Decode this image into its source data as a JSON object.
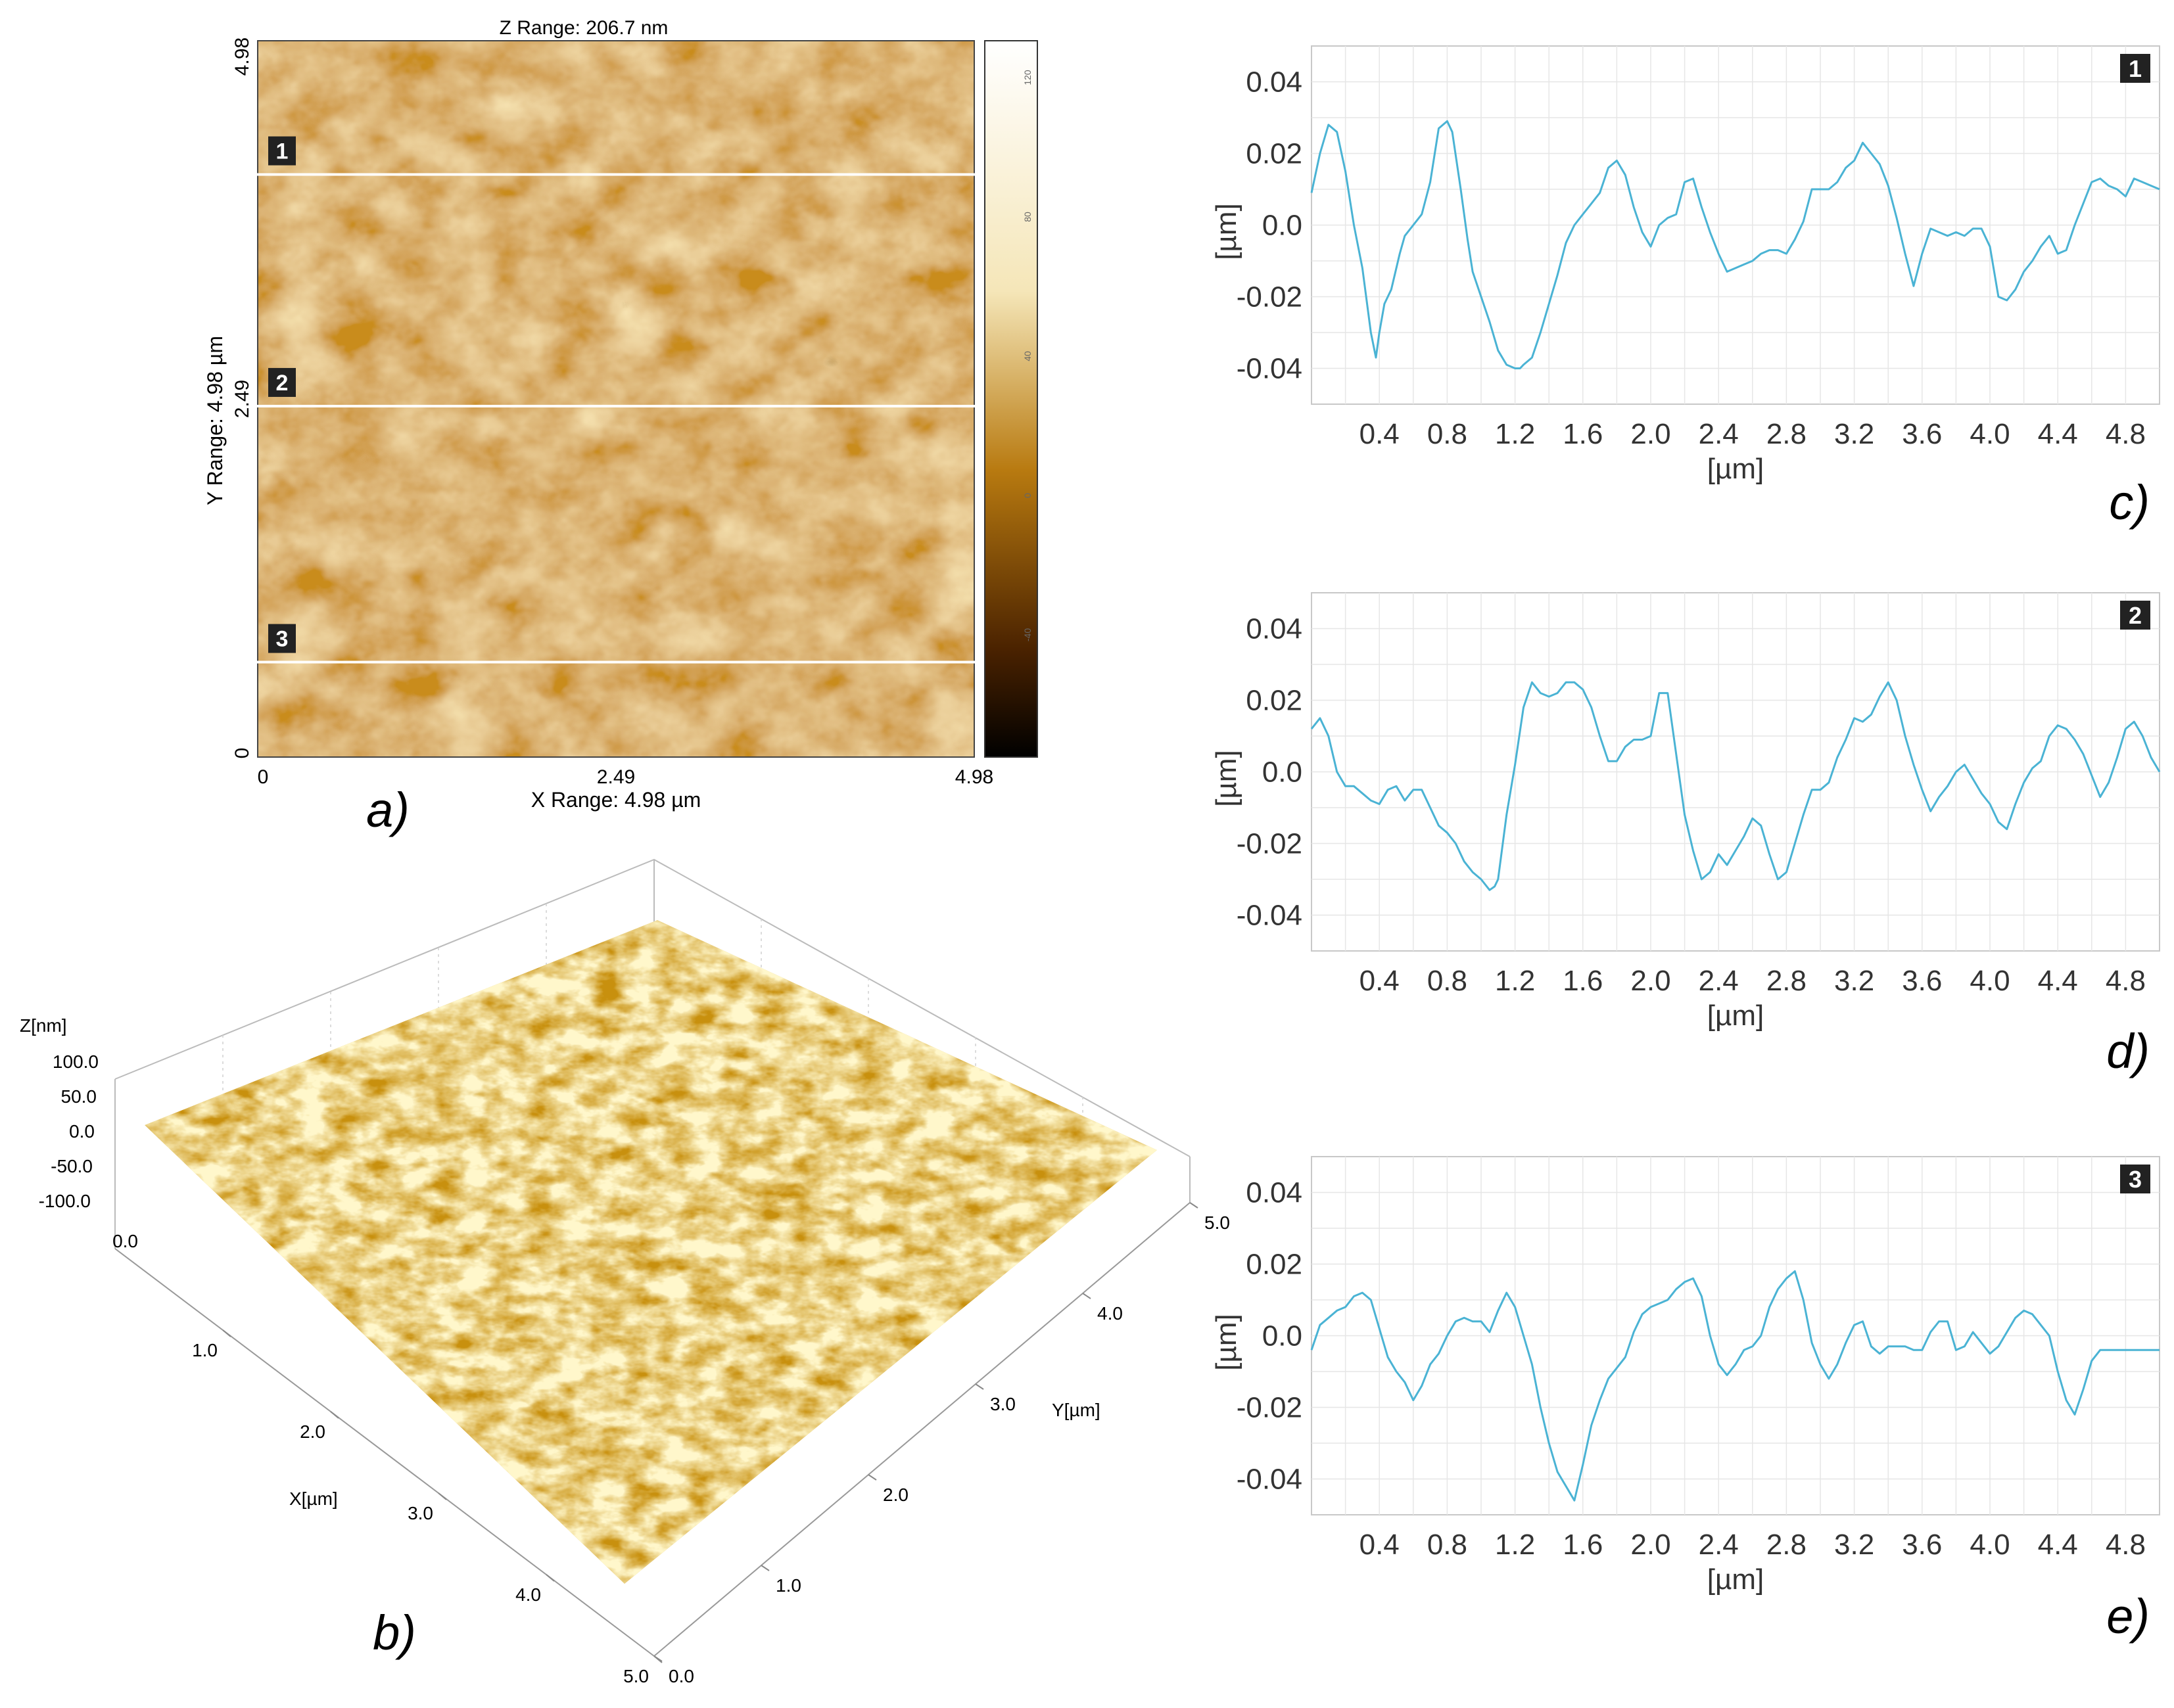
{
  "panel_labels": {
    "a": "a)",
    "b": "b)",
    "c": "c)",
    "d": "d)",
    "e": "e)"
  },
  "afm_map": {
    "z_range": "Z Range:  206.7 nm",
    "x_range": "X Range:  4.98 µm",
    "y_range": "Y Range:  4.98 µm",
    "x_ticks": [
      "0",
      "2.49",
      "4.98"
    ],
    "y_ticks": [
      "0",
      "2.49",
      "4.98"
    ],
    "colorbar_ticks": [
      "120",
      "80",
      "40",
      "0",
      "-40"
    ],
    "scan_lines": [
      "1",
      "2",
      "3"
    ],
    "scan_line_positions_um": [
      4.05,
      2.44,
      0.66
    ],
    "colors": {
      "dark": "#1a0a00",
      "mid": "#b87a10",
      "light": "#f5e6b8"
    }
  },
  "surface_3d": {
    "z_label": "Z[nm]",
    "z_ticks": [
      "100.0",
      "50.0",
      "0.0",
      "-50.0",
      "-100.0"
    ],
    "x_label": "X[µm]",
    "x_ticks": [
      "0.0",
      "1.0",
      "2.0",
      "3.0",
      "4.0",
      "5.0"
    ],
    "y_label": "Y[µm]",
    "y_ticks": [
      "0.0",
      "1.0",
      "2.0",
      "3.0",
      "4.0",
      "5.0"
    ]
  },
  "chart_data": [
    {
      "type": "line",
      "id": "c",
      "badge": "1",
      "xlabel": "[µm]",
      "ylabel": "[µm]",
      "xlim": [
        0,
        5.0
      ],
      "ylim": [
        -0.05,
        0.05
      ],
      "x_ticks": [
        "0.4",
        "0.8",
        "1.2",
        "1.6",
        "2.0",
        "2.4",
        "2.8",
        "3.2",
        "3.6",
        "4.0",
        "4.4",
        "4.8"
      ],
      "y_ticks": [
        "0.04",
        "0.02",
        "0.0",
        "-0.02",
        "-0.04"
      ],
      "color": "#4ab3d4",
      "x": [
        0.0,
        0.05,
        0.1,
        0.15,
        0.2,
        0.25,
        0.3,
        0.35,
        0.38,
        0.4,
        0.43,
        0.47,
        0.52,
        0.55,
        0.6,
        0.65,
        0.7,
        0.75,
        0.8,
        0.83,
        0.88,
        0.92,
        0.95,
        1.0,
        1.05,
        1.1,
        1.15,
        1.2,
        1.23,
        1.25,
        1.3,
        1.35,
        1.4,
        1.45,
        1.5,
        1.55,
        1.6,
        1.65,
        1.7,
        1.75,
        1.8,
        1.85,
        1.9,
        1.95,
        2.0,
        2.05,
        2.1,
        2.15,
        2.2,
        2.25,
        2.3,
        2.35,
        2.4,
        2.45,
        2.5,
        2.55,
        2.6,
        2.65,
        2.7,
        2.75,
        2.8,
        2.85,
        2.9,
        2.95,
        3.0,
        3.05,
        3.1,
        3.15,
        3.2,
        3.25,
        3.3,
        3.35,
        3.4,
        3.45,
        3.5,
        3.55,
        3.6,
        3.65,
        3.7,
        3.75,
        3.8,
        3.85,
        3.9,
        3.95,
        4.0,
        4.05,
        4.1,
        4.15,
        4.2,
        4.25,
        4.3,
        4.35,
        4.4,
        4.45,
        4.5,
        4.55,
        4.6,
        4.65,
        4.7,
        4.75,
        4.8,
        4.85,
        4.9,
        4.95,
        5.0
      ],
      "y": [
        0.009,
        0.02,
        0.028,
        0.026,
        0.015,
        0.0,
        -0.012,
        -0.03,
        -0.037,
        -0.03,
        -0.022,
        -0.018,
        -0.008,
        -0.003,
        0.0,
        0.003,
        0.012,
        0.027,
        0.029,
        0.026,
        0.01,
        -0.004,
        -0.013,
        -0.02,
        -0.027,
        -0.035,
        -0.039,
        -0.04,
        -0.04,
        -0.039,
        -0.037,
        -0.03,
        -0.022,
        -0.014,
        -0.005,
        0.0,
        0.003,
        0.006,
        0.009,
        0.016,
        0.018,
        0.014,
        0.005,
        -0.002,
        -0.006,
        0.0,
        0.002,
        0.003,
        0.012,
        0.013,
        0.005,
        -0.002,
        -0.008,
        -0.013,
        -0.012,
        -0.011,
        -0.01,
        -0.008,
        -0.007,
        -0.007,
        -0.008,
        -0.004,
        0.001,
        0.01,
        0.01,
        0.01,
        0.012,
        0.016,
        0.018,
        0.023,
        0.02,
        0.017,
        0.011,
        0.002,
        -0.008,
        -0.017,
        -0.008,
        -0.001,
        -0.002,
        -0.003,
        -0.002,
        -0.003,
        -0.001,
        -0.001,
        -0.006,
        -0.02,
        -0.021,
        -0.018,
        -0.013,
        -0.01,
        -0.006,
        -0.003,
        -0.008,
        -0.007,
        0.0,
        0.006,
        0.012,
        0.013,
        0.011,
        0.01,
        0.008,
        0.013,
        0.012,
        0.011,
        0.01
      ]
    },
    {
      "type": "line",
      "id": "d",
      "badge": "2",
      "xlabel": "[µm]",
      "ylabel": "[µm]",
      "xlim": [
        0,
        5.0
      ],
      "ylim": [
        -0.05,
        0.05
      ],
      "x_ticks": [
        "0.4",
        "0.8",
        "1.2",
        "1.6",
        "2.0",
        "2.4",
        "2.8",
        "3.2",
        "3.6",
        "4.0",
        "4.4",
        "4.8"
      ],
      "y_ticks": [
        "0.04",
        "0.02",
        "0.0",
        "-0.02",
        "-0.04"
      ],
      "color": "#4ab3d4",
      "x": [
        0.0,
        0.05,
        0.1,
        0.15,
        0.2,
        0.25,
        0.3,
        0.35,
        0.4,
        0.45,
        0.5,
        0.55,
        0.6,
        0.65,
        0.7,
        0.75,
        0.8,
        0.85,
        0.9,
        0.95,
        1.0,
        1.05,
        1.08,
        1.1,
        1.15,
        1.2,
        1.25,
        1.3,
        1.35,
        1.4,
        1.45,
        1.5,
        1.55,
        1.6,
        1.65,
        1.7,
        1.75,
        1.8,
        1.85,
        1.9,
        1.95,
        2.0,
        2.05,
        2.1,
        2.15,
        2.2,
        2.25,
        2.3,
        2.35,
        2.4,
        2.45,
        2.5,
        2.55,
        2.6,
        2.65,
        2.7,
        2.75,
        2.8,
        2.85,
        2.9,
        2.95,
        3.0,
        3.05,
        3.1,
        3.15,
        3.2,
        3.25,
        3.3,
        3.35,
        3.4,
        3.45,
        3.5,
        3.55,
        3.6,
        3.65,
        3.7,
        3.75,
        3.8,
        3.85,
        3.9,
        3.95,
        4.0,
        4.05,
        4.1,
        4.15,
        4.2,
        4.25,
        4.3,
        4.35,
        4.4,
        4.45,
        4.5,
        4.55,
        4.6,
        4.65,
        4.7,
        4.75,
        4.8,
        4.85,
        4.9,
        4.95,
        5.0
      ],
      "y": [
        0.012,
        0.015,
        0.01,
        0.0,
        -0.004,
        -0.004,
        -0.006,
        -0.008,
        -0.009,
        -0.005,
        -0.004,
        -0.008,
        -0.005,
        -0.005,
        -0.01,
        -0.015,
        -0.017,
        -0.02,
        -0.025,
        -0.028,
        -0.03,
        -0.033,
        -0.032,
        -0.03,
        -0.012,
        0.002,
        0.018,
        0.025,
        0.022,
        0.021,
        0.022,
        0.025,
        0.025,
        0.023,
        0.018,
        0.01,
        0.003,
        0.003,
        0.007,
        0.009,
        0.009,
        0.01,
        0.022,
        0.022,
        0.005,
        -0.012,
        -0.022,
        -0.03,
        -0.028,
        -0.023,
        -0.026,
        -0.022,
        -0.018,
        -0.013,
        -0.015,
        -0.023,
        -0.03,
        -0.028,
        -0.02,
        -0.012,
        -0.005,
        -0.005,
        -0.003,
        0.004,
        0.009,
        0.015,
        0.014,
        0.016,
        0.021,
        0.025,
        0.02,
        0.01,
        0.002,
        -0.005,
        -0.011,
        -0.007,
        -0.004,
        0.0,
        0.002,
        -0.002,
        -0.006,
        -0.009,
        -0.014,
        -0.016,
        -0.009,
        -0.003,
        0.001,
        0.003,
        0.01,
        0.013,
        0.012,
        0.009,
        0.005,
        -0.001,
        -0.007,
        -0.003,
        0.004,
        0.012,
        0.014,
        0.01,
        0.004,
        0.0
      ]
    },
    {
      "type": "line",
      "id": "e",
      "badge": "3",
      "xlabel": "[µm]",
      "ylabel": "[µm]",
      "xlim": [
        0,
        5.0
      ],
      "ylim": [
        -0.05,
        0.05
      ],
      "x_ticks": [
        "0.4",
        "0.8",
        "1.2",
        "1.6",
        "2.0",
        "2.4",
        "2.8",
        "3.2",
        "3.6",
        "4.0",
        "4.4",
        "4.8"
      ],
      "y_ticks": [
        "0.04",
        "0.02",
        "0.0",
        "-0.02",
        "-0.04"
      ],
      "color": "#4ab3d4",
      "x": [
        0.0,
        0.05,
        0.1,
        0.15,
        0.2,
        0.25,
        0.3,
        0.35,
        0.4,
        0.45,
        0.5,
        0.55,
        0.6,
        0.65,
        0.7,
        0.75,
        0.8,
        0.85,
        0.9,
        0.95,
        1.0,
        1.05,
        1.1,
        1.15,
        1.2,
        1.25,
        1.3,
        1.35,
        1.4,
        1.45,
        1.5,
        1.55,
        1.6,
        1.65,
        1.7,
        1.75,
        1.8,
        1.85,
        1.9,
        1.95,
        2.0,
        2.05,
        2.1,
        2.15,
        2.2,
        2.25,
        2.3,
        2.35,
        2.4,
        2.45,
        2.5,
        2.55,
        2.6,
        2.65,
        2.7,
        2.75,
        2.8,
        2.85,
        2.9,
        2.95,
        3.0,
        3.05,
        3.1,
        3.15,
        3.2,
        3.25,
        3.3,
        3.35,
        3.4,
        3.45,
        3.5,
        3.55,
        3.6,
        3.65,
        3.7,
        3.75,
        3.8,
        3.85,
        3.9,
        3.95,
        4.0,
        4.05,
        4.1,
        4.15,
        4.2,
        4.25,
        4.3,
        4.35,
        4.4,
        4.45,
        4.5,
        4.55,
        4.6,
        4.65,
        4.7,
        4.75,
        4.8,
        4.85,
        4.9,
        4.95,
        5.0
      ],
      "y": [
        -0.004,
        0.003,
        0.005,
        0.007,
        0.008,
        0.011,
        0.012,
        0.01,
        0.002,
        -0.006,
        -0.01,
        -0.013,
        -0.018,
        -0.014,
        -0.008,
        -0.005,
        0.0,
        0.004,
        0.005,
        0.004,
        0.004,
        0.001,
        0.007,
        0.012,
        0.008,
        0.0,
        -0.008,
        -0.02,
        -0.03,
        -0.038,
        -0.042,
        -0.046,
        -0.036,
        -0.025,
        -0.018,
        -0.012,
        -0.009,
        -0.006,
        0.001,
        0.006,
        0.008,
        0.009,
        0.01,
        0.013,
        0.015,
        0.016,
        0.011,
        0.0,
        -0.008,
        -0.011,
        -0.008,
        -0.004,
        -0.003,
        0.0,
        0.008,
        0.013,
        0.016,
        0.018,
        0.01,
        -0.002,
        -0.008,
        -0.012,
        -0.008,
        -0.002,
        0.003,
        0.004,
        -0.003,
        -0.005,
        -0.003,
        -0.003,
        -0.003,
        -0.004,
        -0.004,
        0.001,
        0.004,
        0.004,
        -0.004,
        -0.003,
        0.001,
        -0.002,
        -0.005,
        -0.003,
        0.001,
        0.005,
        0.007,
        0.006,
        0.003,
        0.0,
        -0.01,
        -0.018,
        -0.022,
        -0.015,
        -0.007,
        -0.004,
        -0.004,
        -0.004,
        -0.004,
        -0.004,
        -0.004,
        -0.004,
        -0.004
      ]
    }
  ]
}
